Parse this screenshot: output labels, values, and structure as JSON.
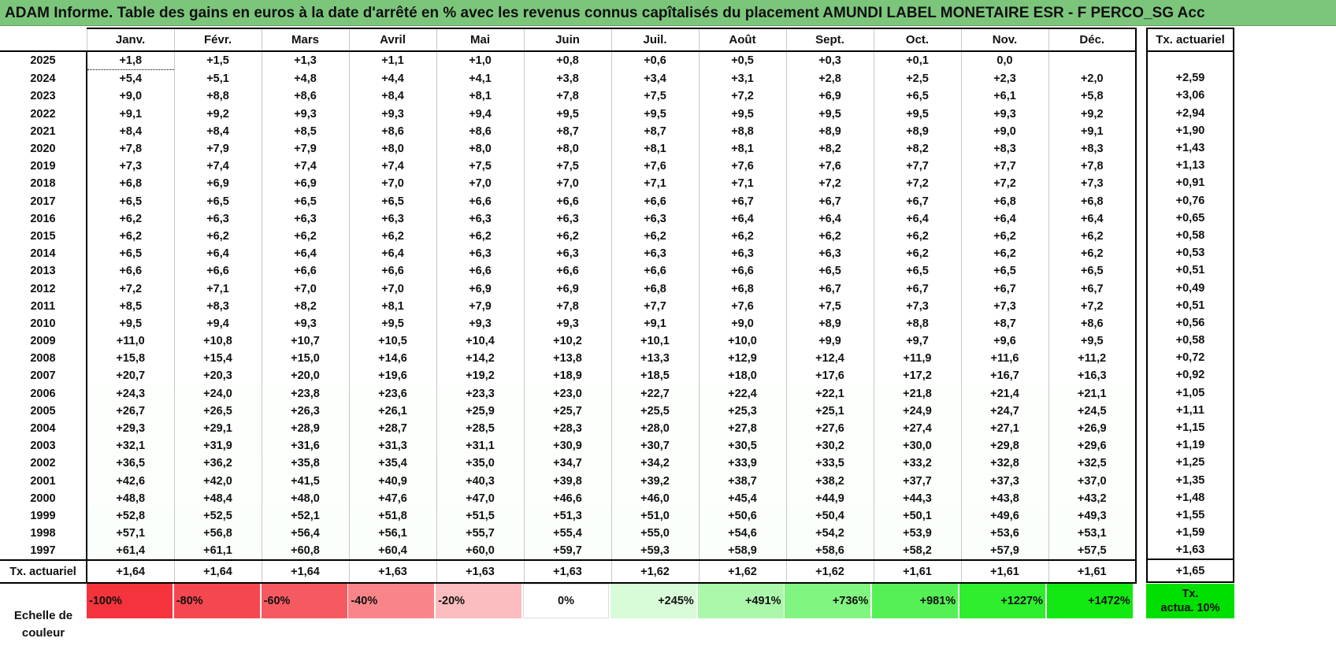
{
  "title": "ADAM Informe. Table des gains en euros à la date d'arrêté en % avec les revenus connus capîtalisés du placement AMUNDI LABEL MONETAIRE ESR - F PERCO_SG Acc",
  "colors": {
    "title_bg": "#7cc67c",
    "cell_tint_max": "#d8fcd8"
  },
  "table": {
    "months": [
      "Janv.",
      "Févr.",
      "Mars",
      "Avril",
      "Mai",
      "Juin",
      "Juil.",
      "Août",
      "Sept.",
      "Oct.",
      "Nov.",
      "Déc."
    ],
    "tx_header": "Tx. actuariel",
    "rows": [
      {
        "year": "2025",
        "values": [
          "+1,8",
          "+1,5",
          "+1,3",
          "+1,1",
          "+1,0",
          "+0,8",
          "+0,6",
          "+0,5",
          "+0,3",
          "+0,1",
          "0,0",
          ""
        ],
        "tx": ""
      },
      {
        "year": "2024",
        "values": [
          "+5,4",
          "+5,1",
          "+4,8",
          "+4,4",
          "+4,1",
          "+3,8",
          "+3,4",
          "+3,1",
          "+2,8",
          "+2,5",
          "+2,3",
          "+2,0"
        ],
        "tx": "+2,59"
      },
      {
        "year": "2023",
        "values": [
          "+9,0",
          "+8,8",
          "+8,6",
          "+8,4",
          "+8,1",
          "+7,8",
          "+7,5",
          "+7,2",
          "+6,9",
          "+6,5",
          "+6,1",
          "+5,8"
        ],
        "tx": "+3,06"
      },
      {
        "year": "2022",
        "values": [
          "+9,1",
          "+9,2",
          "+9,3",
          "+9,3",
          "+9,4",
          "+9,5",
          "+9,5",
          "+9,5",
          "+9,5",
          "+9,5",
          "+9,3",
          "+9,2"
        ],
        "tx": "+2,94"
      },
      {
        "year": "2021",
        "values": [
          "+8,4",
          "+8,4",
          "+8,5",
          "+8,6",
          "+8,6",
          "+8,7",
          "+8,7",
          "+8,8",
          "+8,9",
          "+8,9",
          "+9,0",
          "+9,1"
        ],
        "tx": "+1,90"
      },
      {
        "year": "2020",
        "values": [
          "+7,8",
          "+7,9",
          "+7,9",
          "+8,0",
          "+8,0",
          "+8,0",
          "+8,1",
          "+8,1",
          "+8,2",
          "+8,2",
          "+8,3",
          "+8,3"
        ],
        "tx": "+1,43"
      },
      {
        "year": "2019",
        "values": [
          "+7,3",
          "+7,4",
          "+7,4",
          "+7,4",
          "+7,5",
          "+7,5",
          "+7,6",
          "+7,6",
          "+7,6",
          "+7,7",
          "+7,7",
          "+7,8"
        ],
        "tx": "+1,13"
      },
      {
        "year": "2018",
        "values": [
          "+6,8",
          "+6,9",
          "+6,9",
          "+7,0",
          "+7,0",
          "+7,0",
          "+7,1",
          "+7,1",
          "+7,2",
          "+7,2",
          "+7,2",
          "+7,3"
        ],
        "tx": "+0,91"
      },
      {
        "year": "2017",
        "values": [
          "+6,5",
          "+6,5",
          "+6,5",
          "+6,5",
          "+6,6",
          "+6,6",
          "+6,6",
          "+6,7",
          "+6,7",
          "+6,7",
          "+6,8",
          "+6,8"
        ],
        "tx": "+0,76"
      },
      {
        "year": "2016",
        "values": [
          "+6,2",
          "+6,3",
          "+6,3",
          "+6,3",
          "+6,3",
          "+6,3",
          "+6,3",
          "+6,4",
          "+6,4",
          "+6,4",
          "+6,4",
          "+6,4"
        ],
        "tx": "+0,65"
      },
      {
        "year": "2015",
        "values": [
          "+6,2",
          "+6,2",
          "+6,2",
          "+6,2",
          "+6,2",
          "+6,2",
          "+6,2",
          "+6,2",
          "+6,2",
          "+6,2",
          "+6,2",
          "+6,2"
        ],
        "tx": "+0,58"
      },
      {
        "year": "2014",
        "values": [
          "+6,5",
          "+6,4",
          "+6,4",
          "+6,4",
          "+6,3",
          "+6,3",
          "+6,3",
          "+6,3",
          "+6,3",
          "+6,2",
          "+6,2",
          "+6,2"
        ],
        "tx": "+0,53"
      },
      {
        "year": "2013",
        "values": [
          "+6,6",
          "+6,6",
          "+6,6",
          "+6,6",
          "+6,6",
          "+6,6",
          "+6,6",
          "+6,6",
          "+6,5",
          "+6,5",
          "+6,5",
          "+6,5"
        ],
        "tx": "+0,51"
      },
      {
        "year": "2012",
        "values": [
          "+7,2",
          "+7,1",
          "+7,0",
          "+7,0",
          "+6,9",
          "+6,9",
          "+6,8",
          "+6,8",
          "+6,7",
          "+6,7",
          "+6,7",
          "+6,7"
        ],
        "tx": "+0,49"
      },
      {
        "year": "2011",
        "values": [
          "+8,5",
          "+8,3",
          "+8,2",
          "+8,1",
          "+7,9",
          "+7,8",
          "+7,7",
          "+7,6",
          "+7,5",
          "+7,3",
          "+7,3",
          "+7,2"
        ],
        "tx": "+0,51"
      },
      {
        "year": "2010",
        "values": [
          "+9,5",
          "+9,4",
          "+9,3",
          "+9,5",
          "+9,3",
          "+9,3",
          "+9,1",
          "+9,0",
          "+8,9",
          "+8,8",
          "+8,7",
          "+8,6"
        ],
        "tx": "+0,56"
      },
      {
        "year": "2009",
        "values": [
          "+11,0",
          "+10,8",
          "+10,7",
          "+10,5",
          "+10,4",
          "+10,2",
          "+10,1",
          "+10,0",
          "+9,9",
          "+9,7",
          "+9,6",
          "+9,5"
        ],
        "tx": "+0,58"
      },
      {
        "year": "2008",
        "values": [
          "+15,8",
          "+15,4",
          "+15,0",
          "+14,6",
          "+14,2",
          "+13,8",
          "+13,3",
          "+12,9",
          "+12,4",
          "+11,9",
          "+11,6",
          "+11,2"
        ],
        "tx": "+0,72"
      },
      {
        "year": "2007",
        "values": [
          "+20,7",
          "+20,3",
          "+20,0",
          "+19,6",
          "+19,2",
          "+18,9",
          "+18,5",
          "+18,0",
          "+17,6",
          "+17,2",
          "+16,7",
          "+16,3"
        ],
        "tx": "+0,92"
      },
      {
        "year": "2006",
        "values": [
          "+24,3",
          "+24,0",
          "+23,8",
          "+23,6",
          "+23,3",
          "+23,0",
          "+22,7",
          "+22,4",
          "+22,1",
          "+21,8",
          "+21,4",
          "+21,1"
        ],
        "tx": "+1,05"
      },
      {
        "year": "2005",
        "values": [
          "+26,7",
          "+26,5",
          "+26,3",
          "+26,1",
          "+25,9",
          "+25,7",
          "+25,5",
          "+25,3",
          "+25,1",
          "+24,9",
          "+24,7",
          "+24,5"
        ],
        "tx": "+1,11"
      },
      {
        "year": "2004",
        "values": [
          "+29,3",
          "+29,1",
          "+28,9",
          "+28,7",
          "+28,5",
          "+28,3",
          "+28,0",
          "+27,8",
          "+27,6",
          "+27,4",
          "+27,1",
          "+26,9"
        ],
        "tx": "+1,15"
      },
      {
        "year": "2003",
        "values": [
          "+32,1",
          "+31,9",
          "+31,6",
          "+31,3",
          "+31,1",
          "+30,9",
          "+30,7",
          "+30,5",
          "+30,2",
          "+30,0",
          "+29,8",
          "+29,6"
        ],
        "tx": "+1,19"
      },
      {
        "year": "2002",
        "values": [
          "+36,5",
          "+36,2",
          "+35,8",
          "+35,4",
          "+35,0",
          "+34,7",
          "+34,2",
          "+33,9",
          "+33,5",
          "+33,2",
          "+32,8",
          "+32,5"
        ],
        "tx": "+1,25"
      },
      {
        "year": "2001",
        "values": [
          "+42,6",
          "+42,0",
          "+41,5",
          "+40,9",
          "+40,3",
          "+39,8",
          "+39,2",
          "+38,7",
          "+38,2",
          "+37,7",
          "+37,3",
          "+37,0"
        ],
        "tx": "+1,35"
      },
      {
        "year": "2000",
        "values": [
          "+48,8",
          "+48,4",
          "+48,0",
          "+47,6",
          "+47,0",
          "+46,6",
          "+46,0",
          "+45,4",
          "+44,9",
          "+44,3",
          "+43,8",
          "+43,2"
        ],
        "tx": "+1,48"
      },
      {
        "year": "1999",
        "values": [
          "+52,8",
          "+52,5",
          "+52,1",
          "+51,8",
          "+51,5",
          "+51,3",
          "+51,0",
          "+50,6",
          "+50,4",
          "+50,1",
          "+49,6",
          "+49,3"
        ],
        "tx": "+1,55"
      },
      {
        "year": "1998",
        "values": [
          "+57,1",
          "+56,8",
          "+56,4",
          "+56,1",
          "+55,7",
          "+55,4",
          "+55,0",
          "+54,6",
          "+54,2",
          "+53,9",
          "+53,6",
          "+53,1"
        ],
        "tx": "+1,59"
      },
      {
        "year": "1997",
        "values": [
          "+61,4",
          "+61,1",
          "+60,8",
          "+60,4",
          "+60,0",
          "+59,7",
          "+59,3",
          "+58,9",
          "+58,6",
          "+58,2",
          "+57,9",
          "+57,5"
        ],
        "tx": "+1,63"
      }
    ],
    "footer": {
      "label": "Tx. actuariel",
      "values": [
        "+1,64",
        "+1,64",
        "+1,64",
        "+1,63",
        "+1,63",
        "+1,63",
        "+1,62",
        "+1,62",
        "+1,62",
        "+1,61",
        "+1,61",
        "+1,61"
      ],
      "tx": "+1,65"
    }
  },
  "legend": {
    "label_line1": "Echelle de",
    "label_line2": "couleur",
    "items": [
      {
        "label": "-100%",
        "color": "#f5333d",
        "align": "left"
      },
      {
        "label": "-80%",
        "color": "#f5474f",
        "align": "left"
      },
      {
        "label": "-60%",
        "color": "#f65a61",
        "align": "left"
      },
      {
        "label": "-40%",
        "color": "#f98589",
        "align": "left"
      },
      {
        "label": "-20%",
        "color": "#fbbdbf",
        "align": "left"
      },
      {
        "label": "0%",
        "color": "#ffffff",
        "align": "center"
      },
      {
        "label": "+245%",
        "color": "#d8fcd8",
        "align": "right"
      },
      {
        "label": "+491%",
        "color": "#abf8ab",
        "align": "right"
      },
      {
        "label": "+736%",
        "color": "#80f580",
        "align": "right"
      },
      {
        "label": "+981%",
        "color": "#55f055",
        "align": "right"
      },
      {
        "label": "+1227%",
        "color": "#2eee2e",
        "align": "right"
      },
      {
        "label": "+1472%",
        "color": "#12e812",
        "align": "right"
      }
    ],
    "tx_line1": "Tx.",
    "tx_line2": "actua. 10%",
    "tx_color": "#00e000"
  }
}
